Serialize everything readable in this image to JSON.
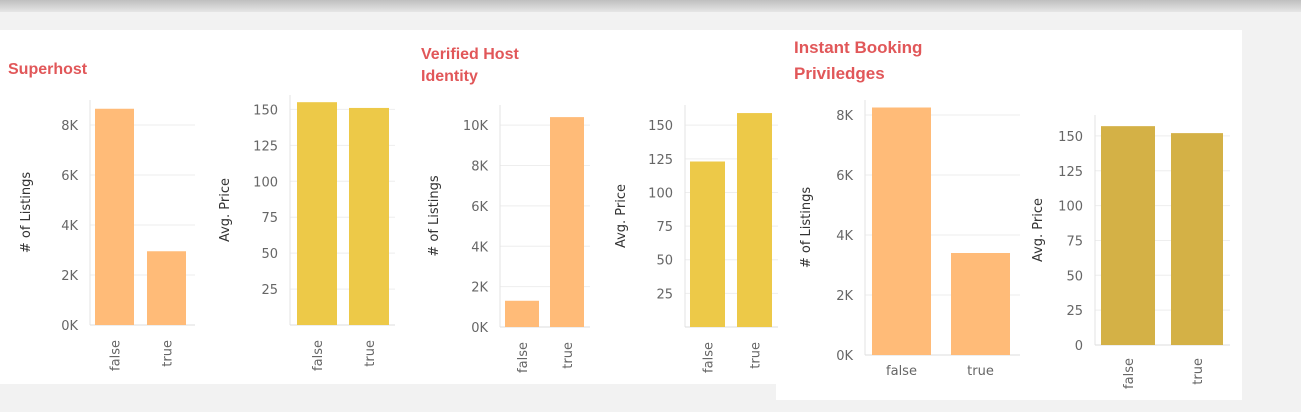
{
  "colors": {
    "title": "#e15759",
    "listings_bar": "#ffbb78",
    "price_bar": "#edc948",
    "price_bar_alt": "#d4b146",
    "gridline": "#eeeeee"
  },
  "sections": [
    {
      "title_lines": [
        "Superhost"
      ]
    },
    {
      "title_lines": [
        "Verified Host",
        "Identity"
      ]
    },
    {
      "title_lines": [
        "Instant Booking",
        "Priviledges"
      ]
    }
  ],
  "chart_data": [
    {
      "type": "bar",
      "section": "Superhost",
      "categories": [
        "false",
        "true"
      ],
      "values": [
        8650,
        2950
      ],
      "ylabel": "# of Listings",
      "yticks": [
        0,
        2000,
        4000,
        6000,
        8000
      ],
      "ytick_labels": [
        "0K",
        "2K",
        "4K",
        "6K",
        "8K"
      ],
      "ylim": [
        0,
        9000
      ],
      "grid": true
    },
    {
      "type": "bar",
      "section": "Superhost",
      "categories": [
        "false",
        "true"
      ],
      "values": [
        155,
        151
      ],
      "ylabel": "Avg. Price",
      "yticks": [
        25,
        50,
        75,
        100,
        125,
        150
      ],
      "ytick_labels": [
        "25",
        "50",
        "75",
        "100",
        "125",
        "150"
      ],
      "ylim": [
        0,
        160
      ],
      "grid": true
    },
    {
      "type": "bar",
      "section": "Verified Host Identity",
      "categories": [
        "false",
        "true"
      ],
      "values": [
        1300,
        10400
      ],
      "ylabel": "# of Listings",
      "yticks": [
        0,
        2000,
        4000,
        6000,
        8000,
        10000
      ],
      "ytick_labels": [
        "0K",
        "2K",
        "4K",
        "6K",
        "8K",
        "10K"
      ],
      "ylim": [
        0,
        11000
      ],
      "grid": true
    },
    {
      "type": "bar",
      "section": "Verified Host Identity",
      "categories": [
        "false",
        "true"
      ],
      "values": [
        123,
        159
      ],
      "ylabel": "Avg. Price",
      "yticks": [
        25,
        50,
        75,
        100,
        125,
        150
      ],
      "ytick_labels": [
        "25",
        "50",
        "75",
        "100",
        "125",
        "150"
      ],
      "ylim": [
        0,
        165
      ],
      "grid": true
    },
    {
      "type": "bar",
      "section": "Instant Booking Priviledges",
      "categories": [
        "false",
        "true"
      ],
      "values": [
        8250,
        3400
      ],
      "ylabel": "# of Listings",
      "yticks": [
        0,
        2000,
        4000,
        6000,
        8000
      ],
      "ytick_labels": [
        "0K",
        "2K",
        "4K",
        "6K",
        "8K"
      ],
      "ylim": [
        0,
        8500
      ],
      "grid": true
    },
    {
      "type": "bar",
      "section": "Instant Booking Priviledges",
      "categories": [
        "false",
        "true"
      ],
      "values": [
        157,
        152
      ],
      "ylabel": "Avg. Price",
      "yticks": [
        0,
        25,
        50,
        75,
        100,
        125,
        150
      ],
      "ytick_labels": [
        "0",
        "25",
        "50",
        "75",
        "100",
        "125",
        "150"
      ],
      "ylim": [
        0,
        165
      ],
      "grid": true
    }
  ]
}
